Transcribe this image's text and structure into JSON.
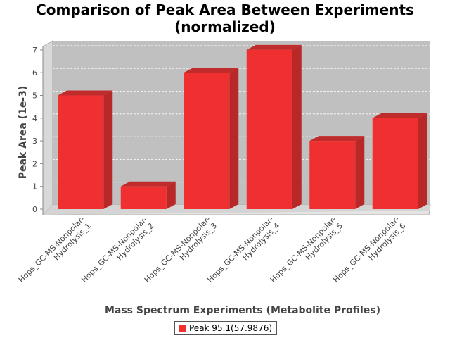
{
  "chart_data": {
    "type": "bar",
    "title_lines": [
      "Comparison of Peak Area Between Experiments",
      "(normalized)"
    ],
    "xlabel": "Mass Spectrum Experiments (Metabolite Profiles)",
    "ylabel": "Peak Area (1e-3)",
    "categories": [
      [
        "Hops_GC-MS-Nonpolar-",
        "Hydrolysis_1"
      ],
      [
        "Hops_GC-MS-Nonpolar-",
        "Hydrolysis_2"
      ],
      [
        "Hops_GC-MS-Nonpolar-",
        "Hydrolysis_3"
      ],
      [
        "Hops_GC-MS-Nonpolar-",
        "Hydrolysis_4"
      ],
      [
        "Hops_GC-MS-Nonpolar-",
        "Hydrolysis_5"
      ],
      [
        "Hops_GC-MS-Nonpolar-",
        "Hydrolysis_6"
      ]
    ],
    "series": [
      {
        "name": "Peak 95.1(57.9876)",
        "values": [
          5,
          1,
          6,
          7,
          3,
          4
        ],
        "color": "#f03030"
      }
    ],
    "ylim": [
      0,
      7.4
    ],
    "yticks": [
      "0",
      "1",
      "2",
      "3",
      "4",
      "5",
      "6",
      "7"
    ],
    "grid": true,
    "rendering": "3d",
    "legend_position": "bottom"
  }
}
